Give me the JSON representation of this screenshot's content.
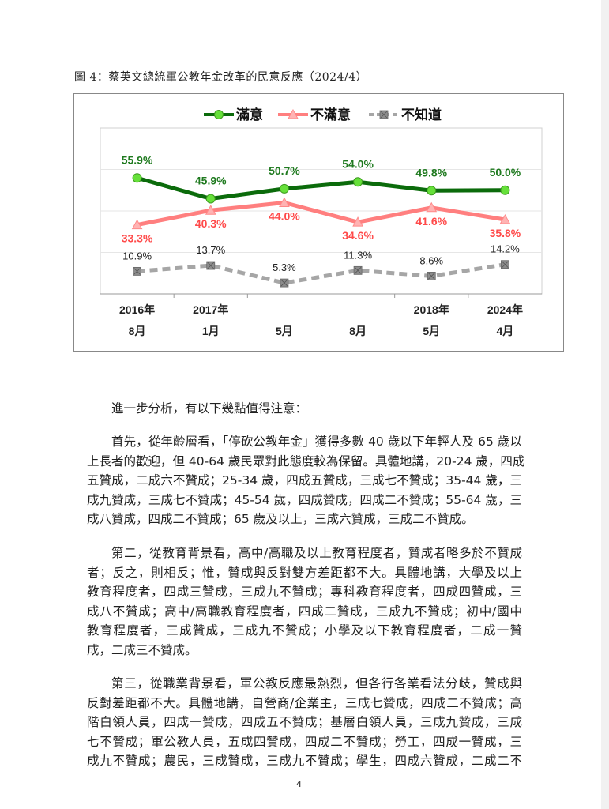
{
  "figure_title": "圖 4：蔡英文總統軍公教年金改革的民意反應（2024/4）",
  "chart_data": {
    "type": "line",
    "categories": [
      [
        "2016年",
        "8月"
      ],
      [
        "2017年",
        "1月"
      ],
      [
        "",
        "5月"
      ],
      [
        "",
        "8月"
      ],
      [
        "2018年",
        "5月"
      ],
      [
        "2024年",
        "4月"
      ]
    ],
    "ylim": [
      0,
      80
    ],
    "grid": true,
    "legend_position": "top",
    "series": [
      {
        "name": "滿意",
        "values": [
          55.9,
          45.9,
          50.7,
          54.0,
          49.8,
          50.0
        ],
        "labels": [
          "55.9%",
          "45.9%",
          "50.7%",
          "54.0%",
          "49.8%",
          "50.0%"
        ],
        "color": "#0b6b0b",
        "marker_color": "#66e03a",
        "label_color": "#1f7a1f",
        "marker": "circle",
        "style": "solid"
      },
      {
        "name": "不滿意",
        "values": [
          33.3,
          40.3,
          44.0,
          34.6,
          41.6,
          35.8
        ],
        "labels": [
          "33.3%",
          "40.3%",
          "44.0%",
          "34.6%",
          "41.6%",
          "35.8%"
        ],
        "color": "#ff7f7f",
        "marker_color": "#ffb3b3",
        "label_color": "#ff4a4a",
        "marker": "triangle",
        "style": "solid"
      },
      {
        "name": "不知道",
        "values": [
          10.9,
          13.7,
          5.3,
          11.3,
          8.6,
          14.2
        ],
        "labels": [
          "10.9%",
          "13.7%",
          "5.3%",
          "11.3%",
          "8.6%",
          "14.2%"
        ],
        "color": "#a6a6a6",
        "marker_color": "#8c8c8c",
        "label_color": "#222222",
        "marker": "x-square",
        "style": "dashed"
      }
    ]
  },
  "paragraphs": [
    {
      "lines": [
        "進一步分析，有以下幾點值得注意："
      ]
    },
    {
      "lines": [
        "首先，從年齡層看，「停砍公教年金」獲得多數 40 歲以下年輕人及 65 歲以",
        "上長者的歡迎，但 40-64 歲民眾對此態度較為保留。具體地講，20-24 歲，四成",
        "五贊成，二成六不贊成；25-34 歲，四成五贊成，三成七不贊成；35-44 歲，三",
        "成九贊成，三成七不贊成；45-54 歲，四成贊成，四成二不贊成；55-64 歲，三",
        "成八贊成，四成二不贊成；65 歲及以上，三成六贊成，三成二不贊成。"
      ]
    },
    {
      "lines": [
        "第二，從教育背景看，高中/高職及以上教育程度者，贊成者略多於不贊成",
        "者；反之，則相反；惟，贊成與反對雙方差距都不大。具體地講，大學及以上",
        "教育程度者，四成三贊成，三成九不贊成；專科教育程度者，四成四贊成，三",
        "成八不贊成；高中/高職教育程度者，四成二贊成，三成九不贊成；初中/國中",
        "教育程度者，三成贊成，三成九不贊成；小學及以下教育程度者，二成一贊",
        "成，二成三不贊成。"
      ]
    },
    {
      "lines": [
        "第三，從職業背景看，軍公教反應最熱烈，但各行各業看法分歧，贊成與",
        "反對差距都不大。具體地講，自營商/企業主，三成七贊成，四成二不贊成；高",
        "階白領人員，四成一贊成，四成五不贊成；基層白領人員，三成九贊成，三成",
        "七不贊成；軍公教人員，五成四贊成，四成二不贊成；勞工，四成一贊成，三",
        "成九不贊成；農民，三成贊成，三成九不贊成；學生，四成六贊成，二成二不"
      ]
    }
  ],
  "page_number": "4"
}
